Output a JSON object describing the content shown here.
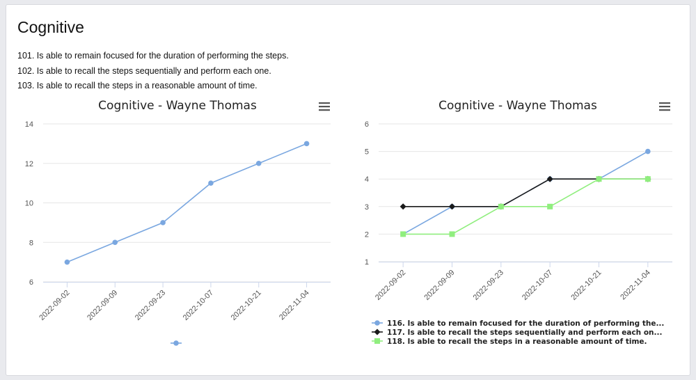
{
  "page": {
    "title": "Cognitive",
    "criteria": [
      "101. Is able to remain focused for the duration of performing the steps.",
      "102. Is able to recall the steps sequentially and perform each one.",
      "103. Is able to recall the steps in a reasonable amount of time."
    ]
  },
  "icons": {
    "menu": "hamburger-menu-icon"
  },
  "chart_data": [
    {
      "type": "line",
      "title": "Cognitive - Wayne Thomas",
      "x": [
        "2022-09-02",
        "2022-09-09",
        "2022-09-23",
        "2022-10-07",
        "2022-10-21",
        "2022-11-04"
      ],
      "yticks": [
        6,
        8,
        10,
        12,
        14
      ],
      "ylim": [
        6,
        14
      ],
      "grid": true,
      "legend": "bottom",
      "series": [
        {
          "name": "",
          "color": "#7aa7e0",
          "marker": "circle",
          "values": [
            7,
            8,
            9,
            11,
            12,
            13
          ]
        }
      ]
    },
    {
      "type": "line",
      "title": "Cognitive - Wayne Thomas",
      "x": [
        "2022-09-02",
        "2022-09-09",
        "2022-09-23",
        "2022-10-07",
        "2022-10-21",
        "2022-11-04"
      ],
      "yticks": [
        1,
        2,
        3,
        4,
        5,
        6
      ],
      "ylim": [
        1,
        6
      ],
      "grid": true,
      "legend": "bottom",
      "series": [
        {
          "name": "116. Is able to remain focused for the duration of performing the...",
          "color": "#7aa7e0",
          "marker": "circle",
          "values": [
            2,
            3,
            3,
            4,
            4,
            5
          ]
        },
        {
          "name": "117. Is able to recall the steps sequentially and perform each on...",
          "color": "#1a1a1a",
          "marker": "diamond",
          "values": [
            3,
            3,
            3,
            4,
            4,
            4
          ]
        },
        {
          "name": "118. Is able to recall the steps in a reasonable amount of time.",
          "color": "#90ee7e",
          "marker": "square",
          "values": [
            2,
            2,
            3,
            3,
            4,
            4
          ]
        }
      ]
    }
  ]
}
